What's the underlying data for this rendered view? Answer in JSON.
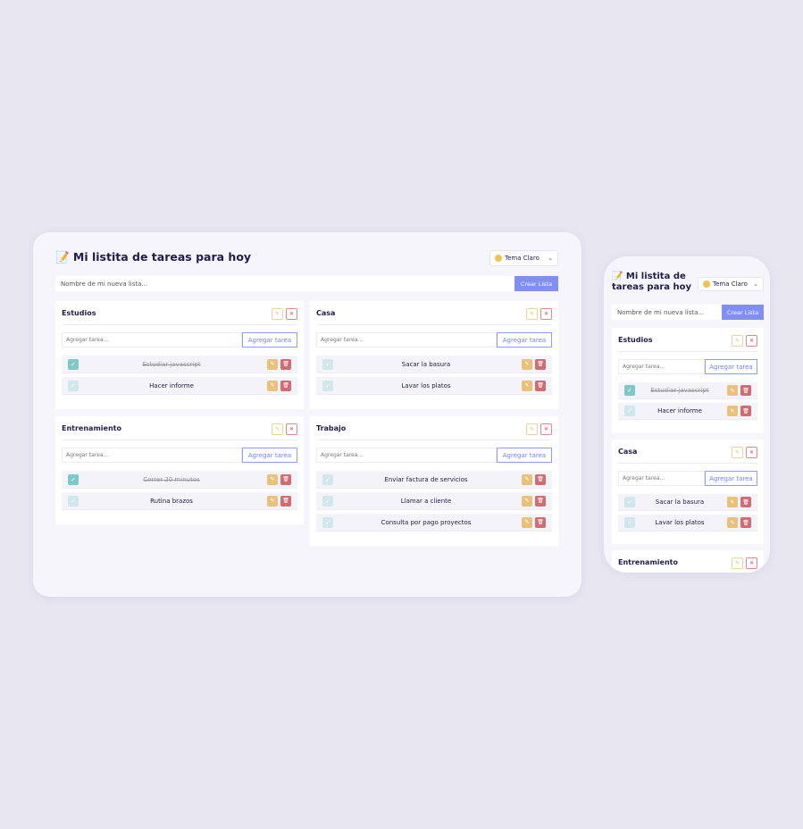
{
  "app": {
    "title": "📝 Mi listita de tareas para hoy",
    "theme_label": "Tema Claro",
    "new_list_placeholder": "Nombre de mi nueva lista...",
    "create_list_label": "Crear Lista",
    "add_task_placeholder": "Agregar tarea...",
    "add_task_label": "Agregar tarea"
  },
  "colors": {
    "accent": "#7f8ff4",
    "done": "#7ec8c8",
    "edit": "#e8c27a",
    "delete": "#d06c72",
    "background": "#e7e6f1"
  },
  "lists": [
    {
      "title": "Estudios",
      "tasks": [
        {
          "name": "Estudiar javascript",
          "done": true
        },
        {
          "name": "Hacer informe",
          "done": false
        }
      ]
    },
    {
      "title": "Casa",
      "tasks": [
        {
          "name": "Sacar la basura",
          "done": false
        },
        {
          "name": "Lavar los platos",
          "done": false
        }
      ]
    },
    {
      "title": "Entrenamiento",
      "tasks": [
        {
          "name": "Correr 20 minutos",
          "done": true
        },
        {
          "name": "Rutina brazos",
          "done": false
        }
      ]
    },
    {
      "title": "Trabajo",
      "tasks": [
        {
          "name": "Enviar factura de servicios",
          "done": false
        },
        {
          "name": "Llamar a cliente",
          "done": false
        },
        {
          "name": "Consulta por pago proyectos",
          "done": false
        }
      ]
    }
  ]
}
